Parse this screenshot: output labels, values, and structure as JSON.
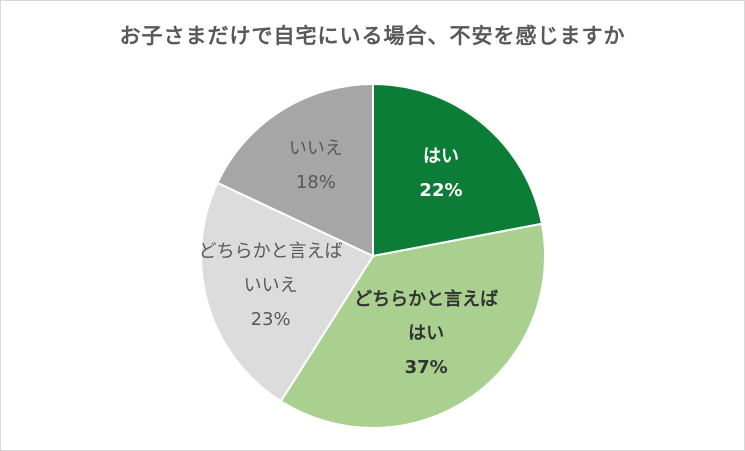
{
  "chart_data": {
    "type": "pie",
    "title": "お子さまだけで自宅にいる場合、不安を感じますか",
    "slices": [
      {
        "label_lines": [
          "はい"
        ],
        "percent_label": "22%",
        "value": 22,
        "color": "#0b7d36",
        "text_color": "#ffffff",
        "bold": true
      },
      {
        "label_lines": [
          "どちらかと言えば",
          "はい"
        ],
        "percent_label": "37%",
        "value": 37,
        "color": "#a9d08e",
        "text_color": "#333333",
        "bold": true
      },
      {
        "label_lines": [
          "どちらかと言えば",
          "いいえ"
        ],
        "percent_label": "23%",
        "value": 23,
        "color": "#dcdcdc",
        "text_color": "#595959",
        "bold": false
      },
      {
        "label_lines": [
          "いいえ"
        ],
        "percent_label": "18%",
        "value": 18,
        "color": "#a6a6a6",
        "text_color": "#595959",
        "bold": false
      }
    ],
    "start_angle": "12 o'clock",
    "direction": "clockwise",
    "legend": "none"
  }
}
